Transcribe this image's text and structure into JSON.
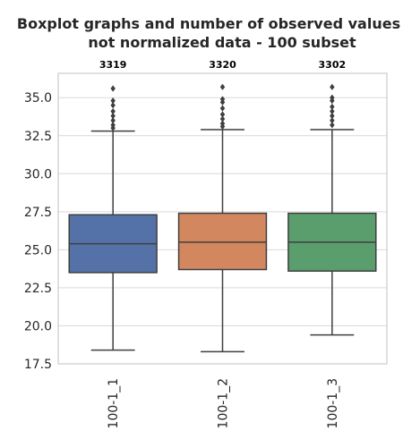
{
  "chart_data": {
    "type": "box",
    "title_lines": [
      "Boxplot graphs and number of observed values",
      "not normalized data - 100 subset"
    ],
    "xlabel": "",
    "ylabel": "",
    "ylim": [
      17.5,
      36.6
    ],
    "yticks": [
      "17.5",
      "20.0",
      "22.5",
      "25.0",
      "27.5",
      "30.0",
      "32.5",
      "35.0"
    ],
    "ytick_values": [
      17.5,
      20.0,
      22.5,
      25.0,
      27.5,
      30.0,
      32.5,
      35.0
    ],
    "grid": true,
    "categories": [
      "100-1_1",
      "100-1_2",
      "100-1_3"
    ],
    "counts": [
      "3319",
      "3320",
      "3302"
    ],
    "colors": [
      "#5572a8",
      "#d3875f",
      "#5a9e6e"
    ],
    "boxes": [
      {
        "whisker_low": 18.4,
        "q1": 23.5,
        "median": 25.4,
        "q3": 27.3,
        "whisker_high": 32.8,
        "outliers": [
          33.0,
          33.2,
          33.5,
          33.8,
          34.1,
          34.5,
          34.8,
          35.6
        ]
      },
      {
        "whisker_low": 18.3,
        "q1": 23.7,
        "median": 25.5,
        "q3": 27.4,
        "whisker_high": 32.9,
        "outliers": [
          33.1,
          33.3,
          33.6,
          33.9,
          34.3,
          34.7,
          34.9,
          35.7
        ]
      },
      {
        "whisker_low": 19.4,
        "q1": 23.6,
        "median": 25.5,
        "q3": 27.4,
        "whisker_high": 32.9,
        "outliers": [
          33.2,
          33.5,
          33.8,
          34.1,
          34.4,
          34.8,
          35.0,
          35.7
        ]
      }
    ]
  }
}
